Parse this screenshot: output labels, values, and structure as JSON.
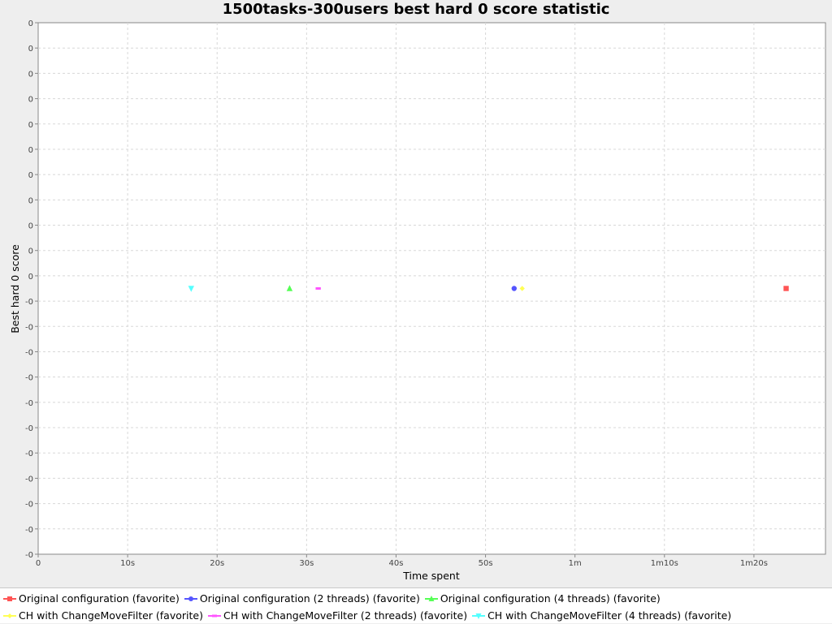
{
  "chart_data": {
    "type": "scatter",
    "title": "1500tasks-300users best hard 0 score statistic",
    "xlabel": "Time spent",
    "ylabel": "Best hard 0 score",
    "xlim": [
      0,
      88
    ],
    "x_ticks": [
      {
        "value": 0,
        "label": "0"
      },
      {
        "value": 10,
        "label": "10s"
      },
      {
        "value": 20,
        "label": "20s"
      },
      {
        "value": 30,
        "label": "30s"
      },
      {
        "value": 40,
        "label": "40s"
      },
      {
        "value": 50,
        "label": "50s"
      },
      {
        "value": 60,
        "label": "1m"
      },
      {
        "value": 70,
        "label": "1m10s"
      },
      {
        "value": 80,
        "label": "1m20s"
      }
    ],
    "y_tick_labels": [
      "0",
      "0",
      "0",
      "0",
      "0",
      "0",
      "0",
      "0",
      "0",
      "0",
      "0",
      "-0",
      "-0",
      "-0",
      "-0",
      "-0",
      "-0",
      "-0",
      "-0",
      "-0",
      "-0",
      "-0"
    ],
    "ylim_label": "0 at center",
    "grid": true,
    "legend_placement": "bottom",
    "series": [
      {
        "name": "Original configuration (favorite)",
        "color": "#ff5555",
        "marker": "square",
        "x": [
          83.6
        ],
        "y": [
          0
        ]
      },
      {
        "name": "Original configuration (2 threads) (favorite)",
        "color": "#5555ff",
        "marker": "circle",
        "x": [
          53.2
        ],
        "y": [
          0
        ]
      },
      {
        "name": "Original configuration (4 threads) (favorite)",
        "color": "#55ff55",
        "marker": "triangle-up",
        "x": [
          28.1
        ],
        "y": [
          0
        ]
      },
      {
        "name": "CH with ChangeMoveFilter (favorite)",
        "color": "#ffff55",
        "marker": "diamond",
        "x": [
          54.1
        ],
        "y": [
          0
        ]
      },
      {
        "name": "CH with ChangeMoveFilter (2 threads) (favorite)",
        "color": "#ff55ff",
        "marker": "h-rect",
        "x": [
          31.3
        ],
        "y": [
          0
        ]
      },
      {
        "name": "CH with ChangeMoveFilter (4 threads) (favorite)",
        "color": "#55ffff",
        "marker": "triangle-down",
        "x": [
          17.1
        ],
        "y": [
          0
        ]
      }
    ]
  }
}
